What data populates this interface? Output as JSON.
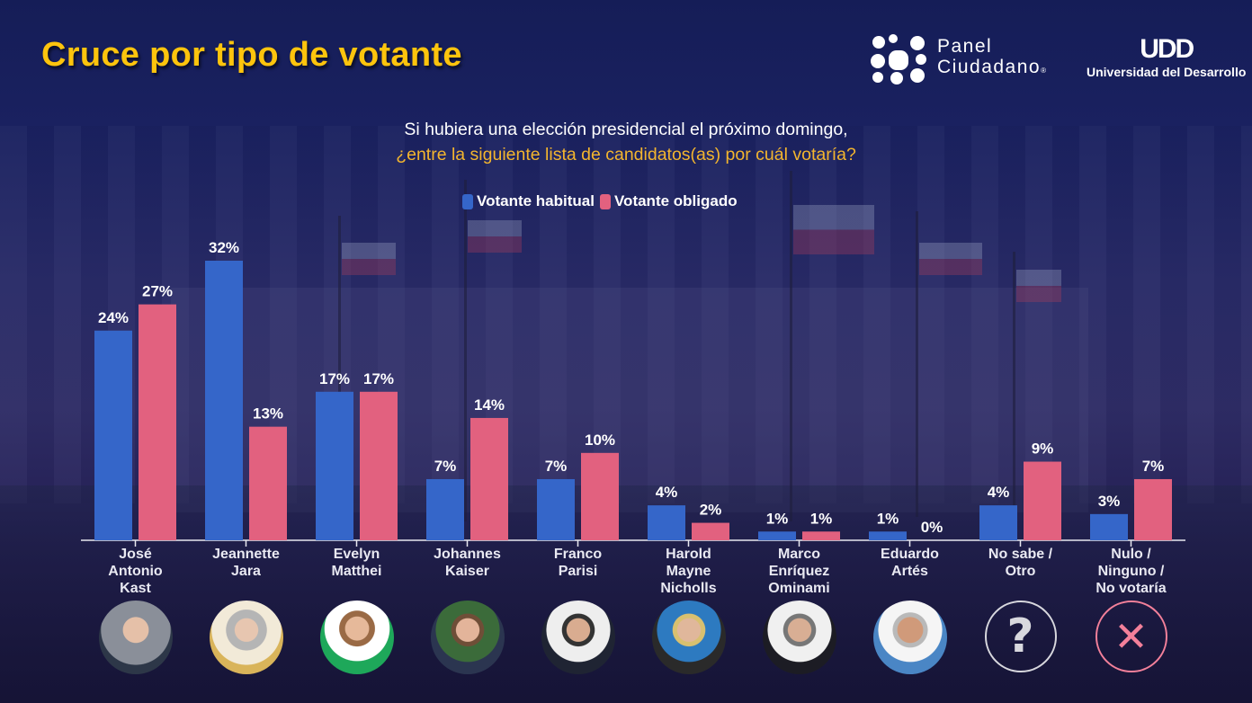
{
  "header": {
    "title": "Cruce por tipo de votante",
    "logos": {
      "panel_ciudadano_line1": "Panel",
      "panel_ciudadano_line2": "Ciudadano",
      "panel_ciudadano_reg": "®",
      "udd_mark": "UDD",
      "udd_name": "Universidad del Desarrollo"
    }
  },
  "question": {
    "line1": "Si hubiera una elección presidencial el próximo domingo,",
    "line2": "¿entre la siguiente lista de candidatos(as) por cuál votaría?"
  },
  "colors": {
    "title": "#fdc40d",
    "question_highlight": "#f3b52e",
    "habitual": "#3566c9",
    "obligado": "#e2617f",
    "unknown_icon": "#d8d8de",
    "null_icon": "#f3809a"
  },
  "chart_data": {
    "type": "bar",
    "title": "Cruce por tipo de votante",
    "subtitle": "Si hubiera una elección presidencial el próximo domingo, ¿entre la siguiente lista de candidatos(as) por cuál votaría?",
    "xlabel": "",
    "ylabel": "",
    "ylim": [
      0,
      32
    ],
    "grid": false,
    "legend_position": "top-center",
    "unit": "%",
    "categories": [
      [
        "José",
        "Antonio",
        "Kast"
      ],
      [
        "Jeannette",
        "Jara"
      ],
      [
        "Evelyn",
        "Matthei"
      ],
      [
        "Johannes",
        "Kaiser"
      ],
      [
        "Franco",
        "Parisi"
      ],
      [
        "Harold",
        "Mayne",
        "Nicholls"
      ],
      [
        "Marco",
        "Enríquez",
        "Ominami"
      ],
      [
        "Eduardo",
        "Artés"
      ],
      [
        "No sabe /",
        "Otro"
      ],
      [
        "Nulo /",
        "Ninguno /",
        "No votaría"
      ]
    ],
    "series": [
      {
        "name": "Votante habitual",
        "color": "#3566c9",
        "values": [
          24,
          32,
          17,
          7,
          7,
          4,
          1,
          1,
          4,
          3
        ]
      },
      {
        "name": "Votante obligado",
        "color": "#e2617f",
        "values": [
          27,
          13,
          17,
          14,
          10,
          2,
          1,
          0,
          9,
          7
        ]
      }
    ]
  },
  "candidate_icons": [
    {
      "name": "kast-photo",
      "type": "photo"
    },
    {
      "name": "jara-photo",
      "type": "photo"
    },
    {
      "name": "matthei-photo",
      "type": "photo"
    },
    {
      "name": "kaiser-photo",
      "type": "photo"
    },
    {
      "name": "parisi-photo",
      "type": "photo"
    },
    {
      "name": "mayne-nicholls-photo",
      "type": "photo"
    },
    {
      "name": "enriquez-ominami-photo",
      "type": "photo"
    },
    {
      "name": "artes-photo",
      "type": "photo"
    },
    {
      "name": "question-mark-icon",
      "type": "icon",
      "glyph": "?"
    },
    {
      "name": "cross-icon",
      "type": "icon",
      "glyph": "✕"
    }
  ]
}
